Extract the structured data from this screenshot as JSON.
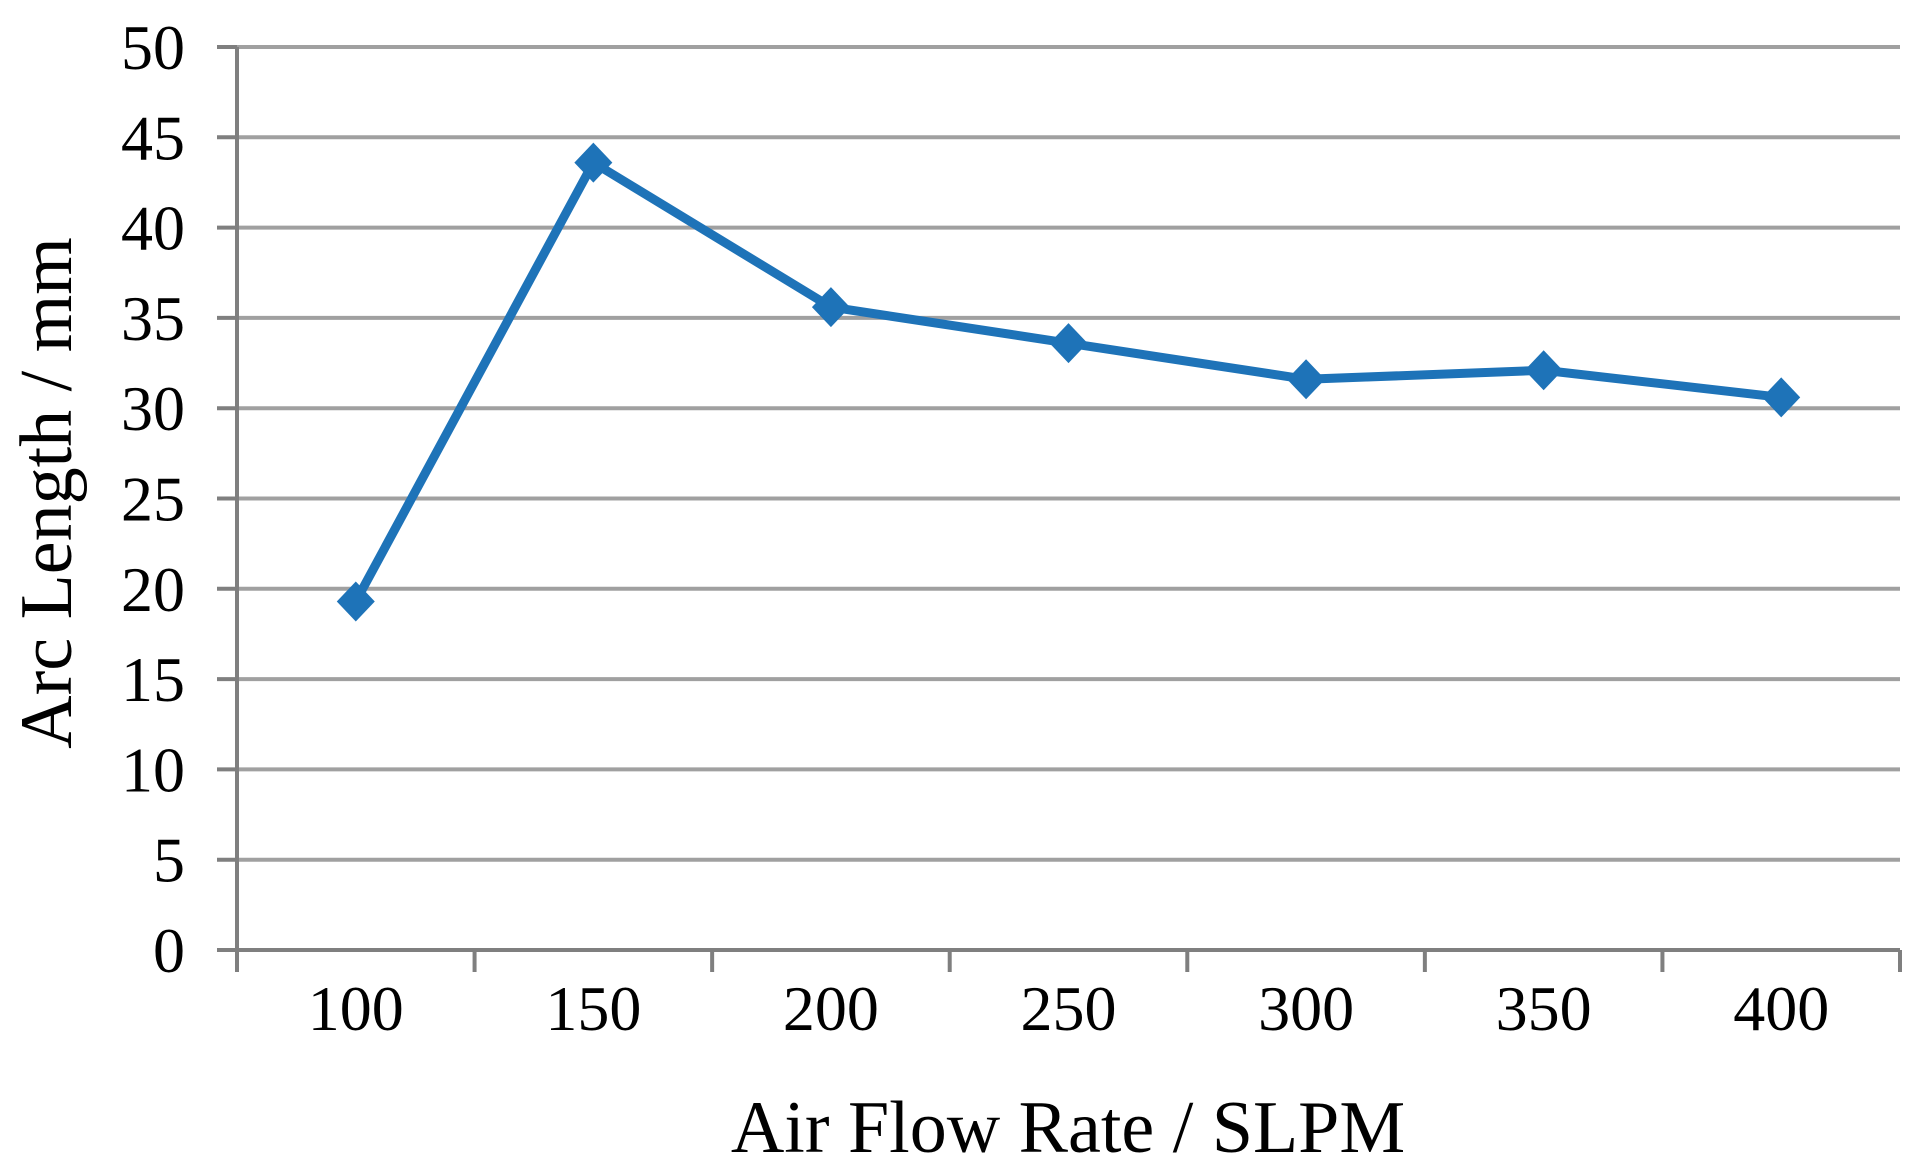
{
  "figure": {
    "background": "#ffffff"
  },
  "chart_data": {
    "type": "line",
    "title": "",
    "xlabel": "Air Flow Rate / SLPM",
    "ylabel": "Arc Length / mm",
    "categories": [
      100,
      150,
      200,
      250,
      300,
      350,
      400
    ],
    "series": [
      {
        "name": "Arc Length",
        "values": [
          19.3,
          43.6,
          35.6,
          33.6,
          31.6,
          32.1,
          30.6
        ]
      }
    ],
    "ylim": [
      0,
      50
    ],
    "yticks": [
      0,
      5,
      10,
      15,
      20,
      25,
      30,
      35,
      40,
      45,
      50
    ],
    "grid": true,
    "legend_position": "none",
    "marker": "diamond",
    "line_color": "#1E73B8",
    "grid_color": "#A0A0A0",
    "axis_color": "#7F7F7F",
    "text_color": "#000000",
    "tick_font_size": 64,
    "line_width": 9
  }
}
